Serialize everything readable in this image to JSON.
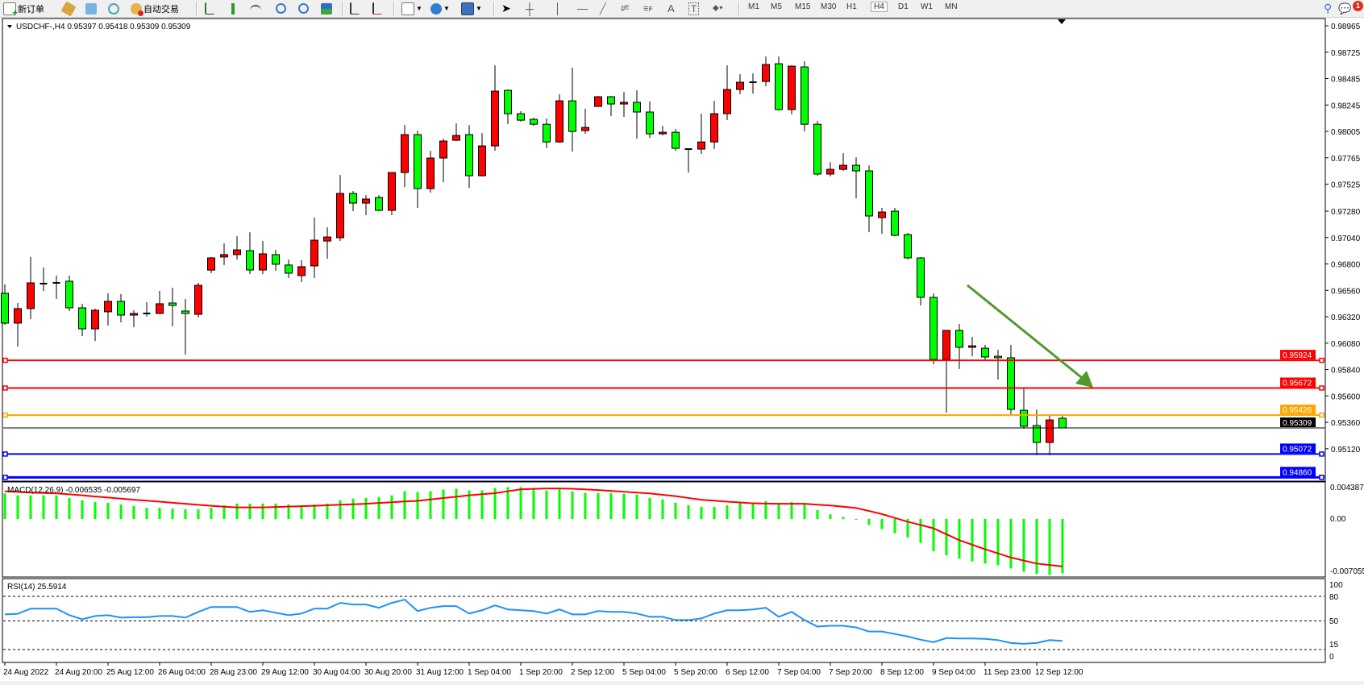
{
  "toolbar": {
    "new_order": "新订单",
    "auto_trading": "自动交易",
    "timeframes": [
      "M1",
      "M5",
      "M15",
      "M30",
      "H1",
      "H4",
      "D1",
      "W1",
      "MN"
    ],
    "active_timeframe": "H4",
    "notification_count": "1",
    "icons": [
      "new-order-icon",
      "history-icon",
      "market-icon",
      "signals-icon",
      "auto-trading-icon",
      "bar-chart-icon",
      "candlestick-icon",
      "line-chart-icon",
      "zoom-in-icon",
      "zoom-out-icon",
      "tile-windows-icon",
      "auto-scroll-icon",
      "chart-shift-icon",
      "indicators-icon",
      "periods-icon",
      "templates-icon",
      "cursor-icon",
      "crosshair-icon",
      "vertical-line-icon",
      "horizontal-line-icon",
      "trendline-icon",
      "fibo-expansion-icon",
      "fibo-channel-icon",
      "text-icon",
      "text-label-icon",
      "arrows-icon",
      "search-icon",
      "notification-icon"
    ]
  },
  "chart": {
    "header": "USDCHF-,H4  0.95397 0.95418 0.95309 0.95309",
    "colors": {
      "bull": "#ff0000",
      "bear": "#00ff00",
      "outline": "#000000"
    }
  },
  "chart_data": [
    {
      "type": "candlestick",
      "symbol": "USDCHF-",
      "timeframe": "H4",
      "ylim": [
        0.9486,
        0.98965
      ],
      "y_ticks": [
        "0.98965",
        "0.98725",
        "0.98485",
        "0.98245",
        "0.98005",
        "0.97765",
        "0.97525",
        "0.97280",
        "0.97040",
        "0.96800",
        "0.96560",
        "0.96320",
        "0.96080",
        "0.95840",
        "0.95600",
        "0.95360",
        "0.95120"
      ],
      "x_tick_labels": [
        "24 Aug 2022",
        "24 Aug 20:00",
        "25 Aug 12:00",
        "26 Aug 04:00",
        "28 Aug 23:00",
        "29 Aug 12:00",
        "30 Aug 04:00",
        "30 Aug 20:00",
        "31 Aug 12:00",
        "1 Sep 04:00",
        "1 Sep 20:00",
        "2 Sep 12:00",
        "5 Sep 04:00",
        "5 Sep 20:00",
        "6 Sep 12:00",
        "7 Sep 04:00",
        "7 Sep 20:00",
        "8 Sep 12:00",
        "9 Sep 04:00",
        "11 Sep 23:00",
        "12 Sep 12:00"
      ],
      "ohlc": [
        [
          0.96533,
          0.96614,
          0.96247,
          0.96262
        ],
        [
          0.96262,
          0.96445,
          0.96049,
          0.96394
        ],
        [
          0.96394,
          0.96863,
          0.96298,
          0.96628
        ],
        [
          0.96621,
          0.96767,
          0.96555,
          0.96621
        ],
        [
          0.96628,
          0.96694,
          0.96482,
          0.96628
        ],
        [
          0.96643,
          0.96694,
          0.96372,
          0.96401
        ],
        [
          0.96401,
          0.96438,
          0.96144,
          0.9621
        ],
        [
          0.9621,
          0.96394,
          0.961,
          0.96379
        ],
        [
          0.96365,
          0.96533,
          0.9624,
          0.9646
        ],
        [
          0.9646,
          0.96526,
          0.96269,
          0.96335
        ],
        [
          0.96335,
          0.96379,
          0.96225,
          0.9635
        ],
        [
          0.9635,
          0.96452,
          0.96321,
          0.9635
        ],
        [
          0.9635,
          0.96555,
          0.96342,
          0.96438
        ],
        [
          0.96445,
          0.96584,
          0.96232,
          0.96423
        ],
        [
          0.96372,
          0.96482,
          0.95976,
          0.9635
        ],
        [
          0.96342,
          0.96628,
          0.96313,
          0.96606
        ],
        [
          0.96744,
          0.96863,
          0.96716,
          0.96855
        ],
        [
          0.96863,
          0.96987,
          0.9679,
          0.96885
        ],
        [
          0.96885,
          0.97052,
          0.9684,
          0.96928
        ],
        [
          0.96921,
          0.97088,
          0.96708,
          0.96745
        ],
        [
          0.96745,
          0.97008,
          0.96708,
          0.96892
        ],
        [
          0.96885,
          0.96928,
          0.96738,
          0.96797
        ],
        [
          0.9679,
          0.9684,
          0.96672,
          0.96716
        ],
        [
          0.96694,
          0.96833,
          0.96635,
          0.96775
        ],
        [
          0.96782,
          0.97221,
          0.96672,
          0.97016
        ],
        [
          0.97008,
          0.97133,
          0.96848,
          0.97045
        ],
        [
          0.97038,
          0.97609,
          0.97008,
          0.97441
        ],
        [
          0.97441,
          0.97463,
          0.9728,
          0.97353
        ],
        [
          0.97353,
          0.97426,
          0.97243,
          0.9739
        ],
        [
          0.97404,
          0.97426,
          0.9728,
          0.97287
        ],
        [
          0.97287,
          0.97631,
          0.97243,
          0.97631
        ],
        [
          0.97631,
          0.98063,
          0.97499,
          0.97976
        ],
        [
          0.97976,
          0.98012,
          0.97309,
          0.97485
        ],
        [
          0.97485,
          0.97829,
          0.97448,
          0.97763
        ],
        [
          0.97763,
          0.97939,
          0.97543,
          0.97917
        ],
        [
          0.97924,
          0.98078,
          0.97917,
          0.97968
        ],
        [
          0.97976,
          0.98063,
          0.97492,
          0.97602
        ],
        [
          0.97602,
          0.9799,
          0.97595,
          0.97873
        ],
        [
          0.97873,
          0.98606,
          0.97829,
          0.98371
        ],
        [
          0.98378,
          0.98386,
          0.9807,
          0.98166
        ],
        [
          0.98166,
          0.98188,
          0.98093,
          0.98107
        ],
        [
          0.98115,
          0.98129,
          0.98056,
          0.9807
        ],
        [
          0.9807,
          0.98122,
          0.97851,
          0.97909
        ],
        [
          0.97909,
          0.98342,
          0.97902,
          0.98283
        ],
        [
          0.98283,
          0.98584,
          0.97822,
          0.98004
        ],
        [
          0.98012,
          0.9821,
          0.97983,
          0.98041
        ],
        [
          0.98232,
          0.98327,
          0.98232,
          0.9832
        ],
        [
          0.9832,
          0.98327,
          0.98144,
          0.98254
        ],
        [
          0.98254,
          0.98364,
          0.98137,
          0.98269
        ],
        [
          0.98269,
          0.98378,
          0.97939,
          0.98181
        ],
        [
          0.98181,
          0.98276,
          0.97946,
          0.97983
        ],
        [
          0.97983,
          0.98056,
          0.97968,
          0.97997
        ],
        [
          0.97997,
          0.98027,
          0.97829,
          0.97851
        ],
        [
          0.97844,
          0.97851,
          0.97631,
          0.97844
        ],
        [
          0.97844,
          0.98166,
          0.978,
          0.97909
        ],
        [
          0.97909,
          0.98283,
          0.97844,
          0.98166
        ],
        [
          0.98166,
          0.98606,
          0.98107,
          0.98386
        ],
        [
          0.98386,
          0.98525,
          0.98342,
          0.98452
        ],
        [
          0.98452,
          0.98532,
          0.98349,
          0.98452
        ],
        [
          0.98459,
          0.98686,
          0.98415,
          0.98613
        ],
        [
          0.9862,
          0.98686,
          0.98195,
          0.98203
        ],
        [
          0.98203,
          0.98606,
          0.98159,
          0.98598
        ],
        [
          0.98591,
          0.98642,
          0.98004,
          0.9807
        ],
        [
          0.9807,
          0.981,
          0.97602,
          0.97617
        ],
        [
          0.97617,
          0.97726,
          0.97595,
          0.9766
        ],
        [
          0.9766,
          0.97807,
          0.97646,
          0.97697
        ],
        [
          0.97697,
          0.9777,
          0.97397,
          0.97646
        ],
        [
          0.97646,
          0.97697,
          0.97089,
          0.97236
        ],
        [
          0.97221,
          0.97309,
          0.97074,
          0.97272
        ],
        [
          0.9728,
          0.97309,
          0.97052,
          0.9706
        ],
        [
          0.97067,
          0.97082,
          0.9684,
          0.96855
        ],
        [
          0.96855,
          0.96863,
          0.96423,
          0.96496
        ],
        [
          0.96496,
          0.96533,
          0.95888,
          0.95932
        ],
        [
          0.95932,
          0.96196,
          0.95448,
          0.96196
        ],
        [
          0.96196,
          0.96254,
          0.95844,
          0.96042
        ],
        [
          0.96042,
          0.96137,
          0.95961,
          0.96056
        ],
        [
          0.96034,
          0.96064,
          0.95925,
          0.95954
        ],
        [
          0.95961,
          0.9602,
          0.95749,
          0.95947
        ],
        [
          0.95947,
          0.96064,
          0.95434,
          0.95478
        ],
        [
          0.9547,
          0.95675,
          0.95302,
          0.95324
        ],
        [
          0.95331,
          0.95478,
          0.9506,
          0.95177
        ],
        [
          0.95177,
          0.95434,
          0.9506,
          0.95382
        ],
        [
          0.95397,
          0.95418,
          0.95309,
          0.95309
        ]
      ],
      "levels": [
        {
          "price": "0.95924",
          "color": "#ff0000"
        },
        {
          "price": "0.95672",
          "color": "#ff0000"
        },
        {
          "price": "0.95426",
          "color": "#ffa500"
        },
        {
          "price": "0.95309",
          "color": "#000000"
        },
        {
          "price": "0.95072",
          "color": "#0000ff"
        },
        {
          "price": "0.94860",
          "color": "#0000ff"
        }
      ],
      "arrow_color": "#4e9a2a"
    },
    {
      "type": "bar",
      "label": "MACD(12,26,9) -0.006535 -0.005697",
      "ylim": [
        -0.007055,
        0.004387
      ],
      "y_ticks": [
        "0.004387",
        "0.00",
        "-0.007055"
      ],
      "histogram_color": "#00ff00",
      "signal_color": "#ff0000",
      "macd": [
        0.00307,
        0.00284,
        0.00284,
        0.00284,
        0.00284,
        0.00251,
        0.00224,
        0.00205,
        0.00195,
        0.00175,
        0.00155,
        0.00135,
        0.00135,
        0.00125,
        0.00116,
        0.00116,
        0.00135,
        0.00165,
        0.00185,
        0.00185,
        0.00185,
        0.00185,
        0.00175,
        0.00165,
        0.00175,
        0.00185,
        0.00224,
        0.00244,
        0.00254,
        0.00264,
        0.00284,
        0.00333,
        0.00323,
        0.00333,
        0.00353,
        0.00363,
        0.00343,
        0.00343,
        0.00373,
        0.00383,
        0.00383,
        0.00373,
        0.00343,
        0.00363,
        0.00333,
        0.00314,
        0.00314,
        0.00314,
        0.00304,
        0.00294,
        0.00254,
        0.00234,
        0.00195,
        0.00165,
        0.00145,
        0.00145,
        0.00165,
        0.00195,
        0.00185,
        0.00215,
        0.00195,
        0.00205,
        0.00175,
        0.00106,
        0.00056,
        0.00026,
        -3e-05,
        -0.00073,
        -0.00122,
        -0.00172,
        -0.00221,
        -0.00287,
        -0.00386,
        -0.00436,
        -0.00475,
        -0.00508,
        -0.00535,
        -0.00554,
        -0.00594,
        -0.00634,
        -0.0066,
        -0.00673,
        -0.006535
      ],
      "signal": [
        0.00333,
        0.00325,
        0.00317,
        0.00312,
        0.00307,
        0.00296,
        0.00284,
        0.0027,
        0.00257,
        0.00244,
        0.00231,
        0.0022,
        0.00208,
        0.00195,
        0.00182,
        0.0017,
        0.00158,
        0.00148,
        0.00139,
        0.00139,
        0.00139,
        0.00144,
        0.00149,
        0.00154,
        0.00158,
        0.00165,
        0.00172,
        0.00177,
        0.00182,
        0.00192,
        0.00201,
        0.0021,
        0.00218,
        0.00234,
        0.00251,
        0.00267,
        0.00284,
        0.00297,
        0.0031,
        0.00333,
        0.00356,
        0.00361,
        0.00366,
        0.00366,
        0.00363,
        0.00355,
        0.00347,
        0.00337,
        0.00327,
        0.00317,
        0.00307,
        0.0029,
        0.00274,
        0.00252,
        0.00231,
        0.0022,
        0.00208,
        0.00198,
        0.00188,
        0.00185,
        0.00182,
        0.00182,
        0.00182,
        0.00172,
        0.00162,
        0.00147,
        0.00132,
        0.00096,
        0.00059,
        0.00013,
        -0.00033,
        -0.00072,
        -0.00112,
        -0.00183,
        -0.00254,
        -0.00309,
        -0.00363,
        -0.00413,
        -0.00462,
        -0.00499,
        -0.00535,
        -0.00552,
        -0.005697
      ]
    },
    {
      "type": "line",
      "label": "RSI(14) 25.5914",
      "ylim": [
        0,
        100
      ],
      "y_ticks": [
        "100",
        "80",
        "50",
        "15",
        "0"
      ],
      "levels": [
        80,
        50,
        15
      ],
      "color": "#1e90ff",
      "values": [
        58,
        58.7,
        65,
        65,
        65,
        57,
        52,
        56,
        57,
        54,
        54.5,
        54.5,
        56,
        56,
        54,
        61,
        67,
        67,
        67,
        61,
        63,
        60,
        57,
        59,
        65,
        65,
        72,
        70,
        70,
        66,
        72,
        76,
        62,
        66,
        68,
        68,
        59,
        63,
        69,
        64,
        63,
        62,
        59,
        64,
        58,
        58,
        62,
        61,
        61,
        59,
        55,
        55,
        51,
        51,
        53,
        59,
        63,
        63,
        64,
        66,
        55,
        61,
        51,
        43,
        44,
        44,
        42,
        37,
        37,
        34,
        31,
        27,
        24,
        29,
        28.5,
        28.5,
        28,
        26.5,
        23,
        22,
        23,
        26.5,
        25.5914
      ]
    }
  ]
}
